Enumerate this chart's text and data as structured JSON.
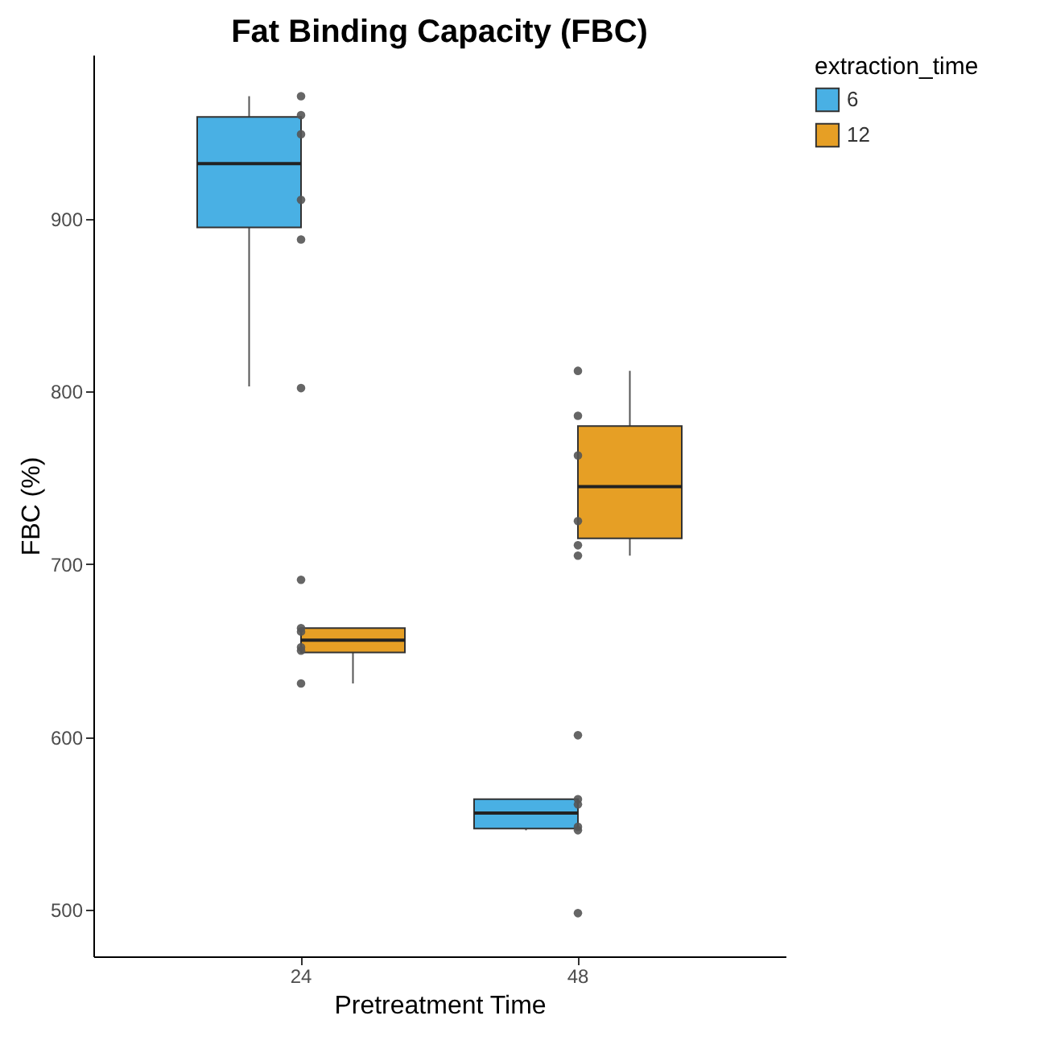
{
  "chart_data": {
    "type": "box",
    "title": "Fat Binding Capacity (FBC)",
    "xlabel": "Pretreatment Time",
    "ylabel": "FBC (%)",
    "legend_title": "extraction_time",
    "categories": [
      "24",
      "48"
    ],
    "ylim": [
      473,
      995
    ],
    "yticks": [
      500,
      600,
      700,
      800,
      900
    ],
    "grid": false,
    "legend": "right",
    "series": [
      {
        "name": "6",
        "color": "#49b0e4",
        "boxes": [
          {
            "low": 803,
            "q1": 895,
            "median": 932,
            "q3": 959,
            "high": 971
          },
          {
            "low": 546,
            "q1": 547,
            "median": 556,
            "q3": 564,
            "high": 564
          }
        ]
      },
      {
        "name": "12",
        "color": "#e69f25",
        "boxes": [
          {
            "low": 631,
            "q1": 649,
            "median": 656,
            "q3": 663,
            "high": 663
          },
          {
            "low": 705,
            "q1": 715,
            "median": 745,
            "q3": 780,
            "high": 812
          }
        ]
      },
      {
        "type": "scatter",
        "color": "#555555",
        "marker": "circle",
        "x": [
          "24",
          "24",
          "24",
          "24",
          "24",
          "24",
          "24",
          "24",
          "24",
          "24",
          "24",
          "24",
          "48",
          "48",
          "48",
          "48",
          "48",
          "48",
          "48",
          "48",
          "48",
          "48",
          "48",
          "48"
        ],
        "values": [
          971,
          960,
          949,
          911,
          888,
          802,
          691,
          663,
          661,
          652,
          650,
          631,
          812,
          786,
          763,
          725,
          711,
          705,
          601,
          564,
          561,
          548,
          546,
          498
        ]
      }
    ]
  }
}
